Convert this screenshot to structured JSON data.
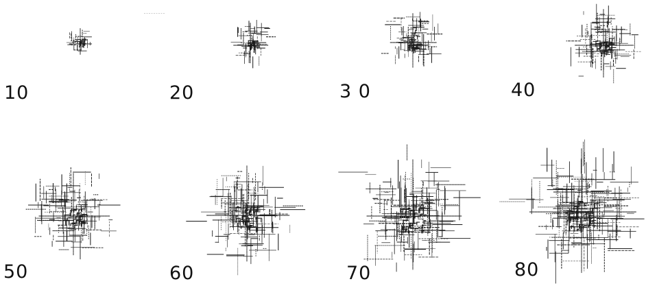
{
  "figure": {
    "panels": [
      {
        "label": "10",
        "steps": 10
      },
      {
        "label": "20",
        "steps": 20
      },
      {
        "label": "3 0",
        "steps": 30
      },
      {
        "label": "40",
        "steps": 40
      },
      {
        "label": "50",
        "steps": 50
      },
      {
        "label": "60",
        "steps": 60
      },
      {
        "label": "70",
        "steps": 70
      },
      {
        "label": "80",
        "steps": 80
      }
    ],
    "line_color": "#1a1a1a",
    "background": "#ffffff"
  }
}
